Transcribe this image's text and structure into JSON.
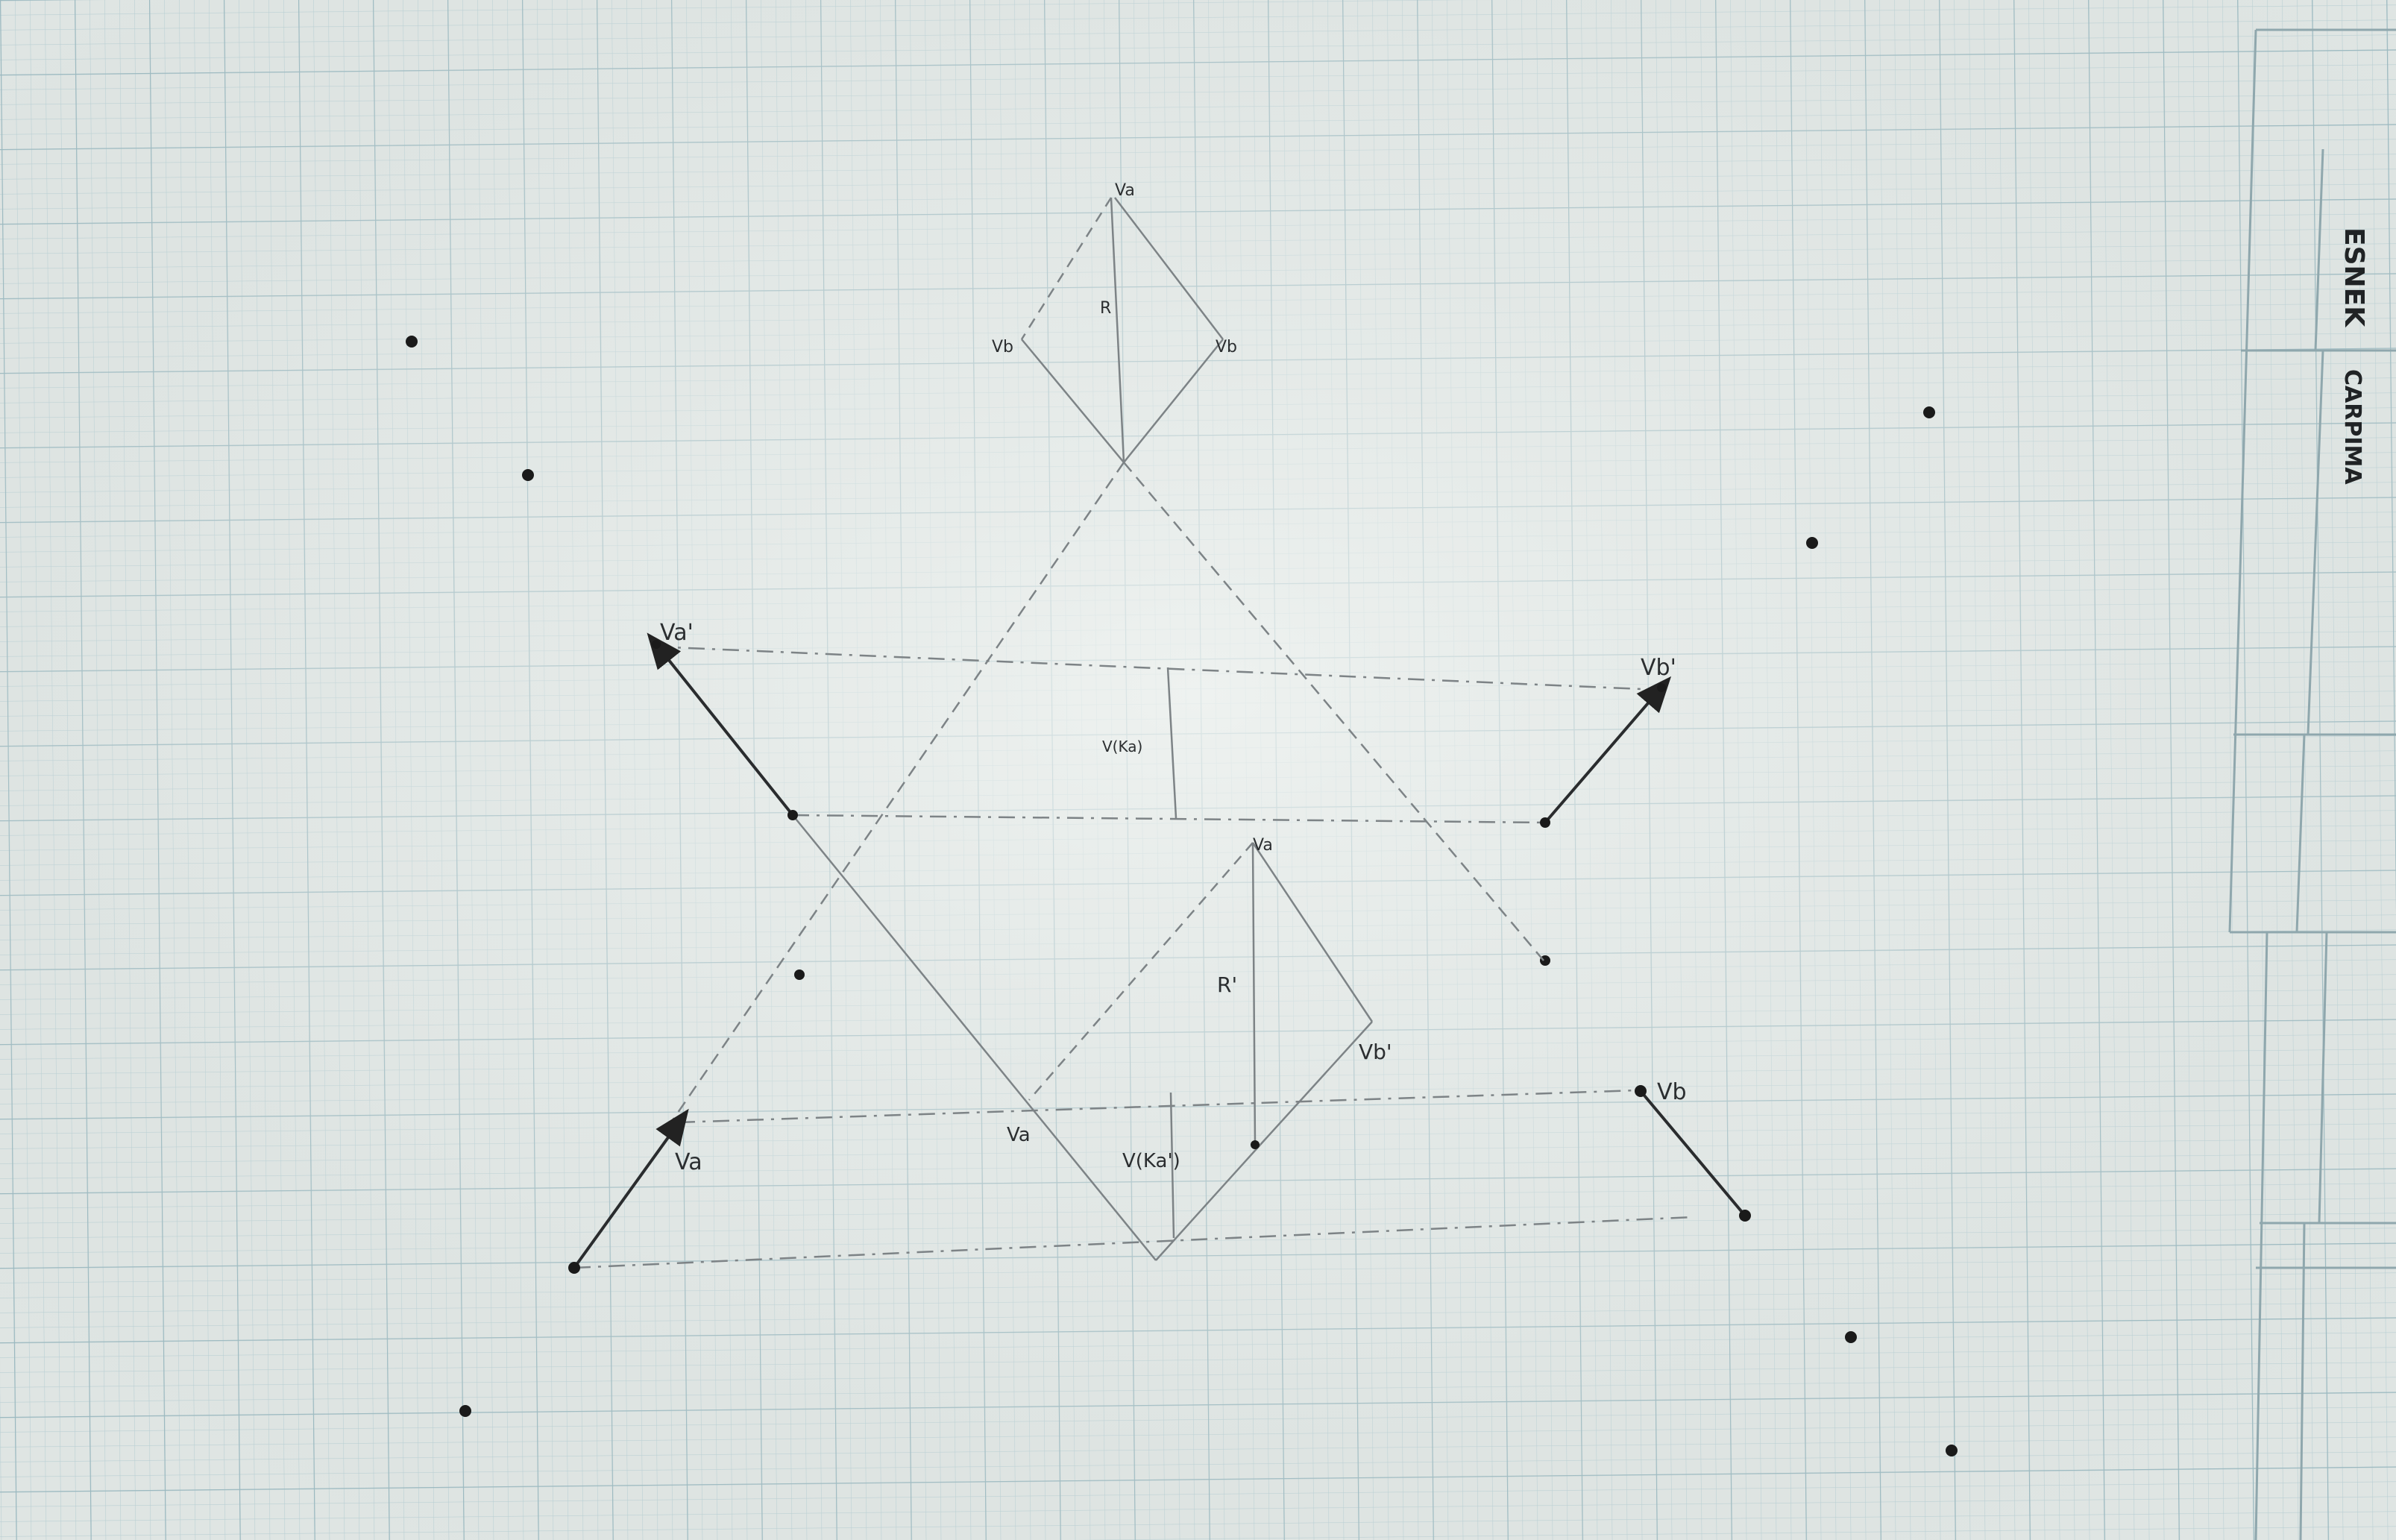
{
  "title_block": {
    "line1": "ESNEK",
    "line2": "CARPIMA"
  },
  "labels": {
    "va_top": "Va",
    "vb_top_right": "Vb",
    "vb_top_left": "Vb",
    "r_top": "R",
    "va_prime": "Va'",
    "vb_prime": "Vb'",
    "va_lower": "Va",
    "vb_lower": "Vb",
    "va_mid": "Va",
    "vb_prime_mid": "Vb'",
    "r_prime": "R'",
    "v_ka": "V(Ka')",
    "faint_center": "V(Ka)"
  },
  "colors": {
    "paper": "#dfe5e3",
    "grid_minor": "#b9cfd3",
    "grid_major": "#9fbcc2",
    "pencil": "#3a3d3f",
    "pencil_light": "#7d8386",
    "dot": "#1a1a1a"
  }
}
